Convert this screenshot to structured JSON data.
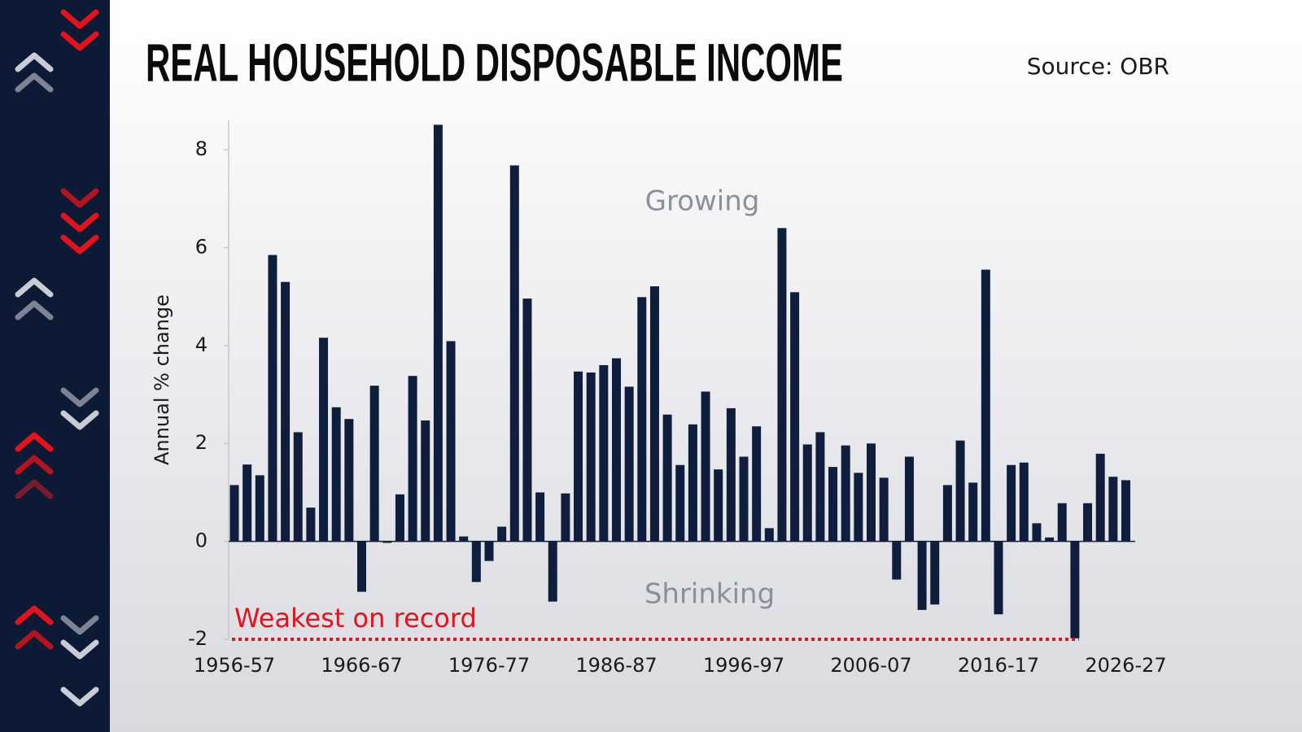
{
  "chart_data": {
    "type": "bar",
    "title": "REAL HOUSEHOLD DISPOSABLE INCOME",
    "source": "Source: OBR",
    "y_label": "Annual % change",
    "annotations": [
      "Growing",
      "Shrinking"
    ],
    "reference_line": {
      "label": "Weakest on record",
      "value": -2,
      "color": "#e3121b"
    },
    "color": "#0f1e3d",
    "categories": [
      "1956-57",
      null,
      null,
      null,
      null,
      null,
      null,
      null,
      null,
      null,
      "1966-67",
      null,
      null,
      null,
      null,
      null,
      null,
      null,
      null,
      null,
      "1976-77",
      null,
      null,
      null,
      null,
      null,
      null,
      null,
      null,
      null,
      "1986-87",
      null,
      null,
      null,
      null,
      null,
      null,
      null,
      null,
      null,
      "1996-97",
      null,
      null,
      null,
      null,
      null,
      null,
      null,
      null,
      null,
      "2006-07",
      null,
      null,
      null,
      null,
      null,
      null,
      null,
      null,
      null,
      "2016-17",
      null,
      null,
      null,
      null,
      null,
      null,
      null,
      null,
      null,
      "2026-27"
    ],
    "values": [
      1.15,
      1.57,
      1.35,
      5.85,
      5.3,
      2.23,
      0.69,
      4.16,
      2.74,
      2.5,
      -1.03,
      3.18,
      -0.03,
      0.96,
      3.38,
      2.47,
      8.51,
      4.09,
      0.1,
      -0.83,
      -0.4,
      0.3,
      7.68,
      4.96,
      1.0,
      -1.23,
      0.98,
      3.47,
      3.45,
      3.6,
      3.74,
      3.16,
      4.99,
      5.21,
      2.59,
      1.56,
      2.39,
      3.06,
      1.47,
      2.72,
      1.73,
      2.35,
      0.27,
      6.4,
      5.09,
      1.98,
      2.23,
      1.52,
      1.96,
      1.4,
      2.0,
      1.3,
      -0.78,
      1.73,
      -1.4,
      -1.29,
      1.15,
      2.06,
      1.2,
      5.55,
      -1.49,
      1.56,
      1.61,
      0.37,
      0.08,
      0.78,
      -1.98,
      0.78,
      1.79,
      1.32,
      1.25
    ],
    "ylim": [
      -2,
      8.6
    ],
    "yticks": [
      -2,
      0,
      2,
      4,
      6,
      8
    ],
    "grid": false
  }
}
